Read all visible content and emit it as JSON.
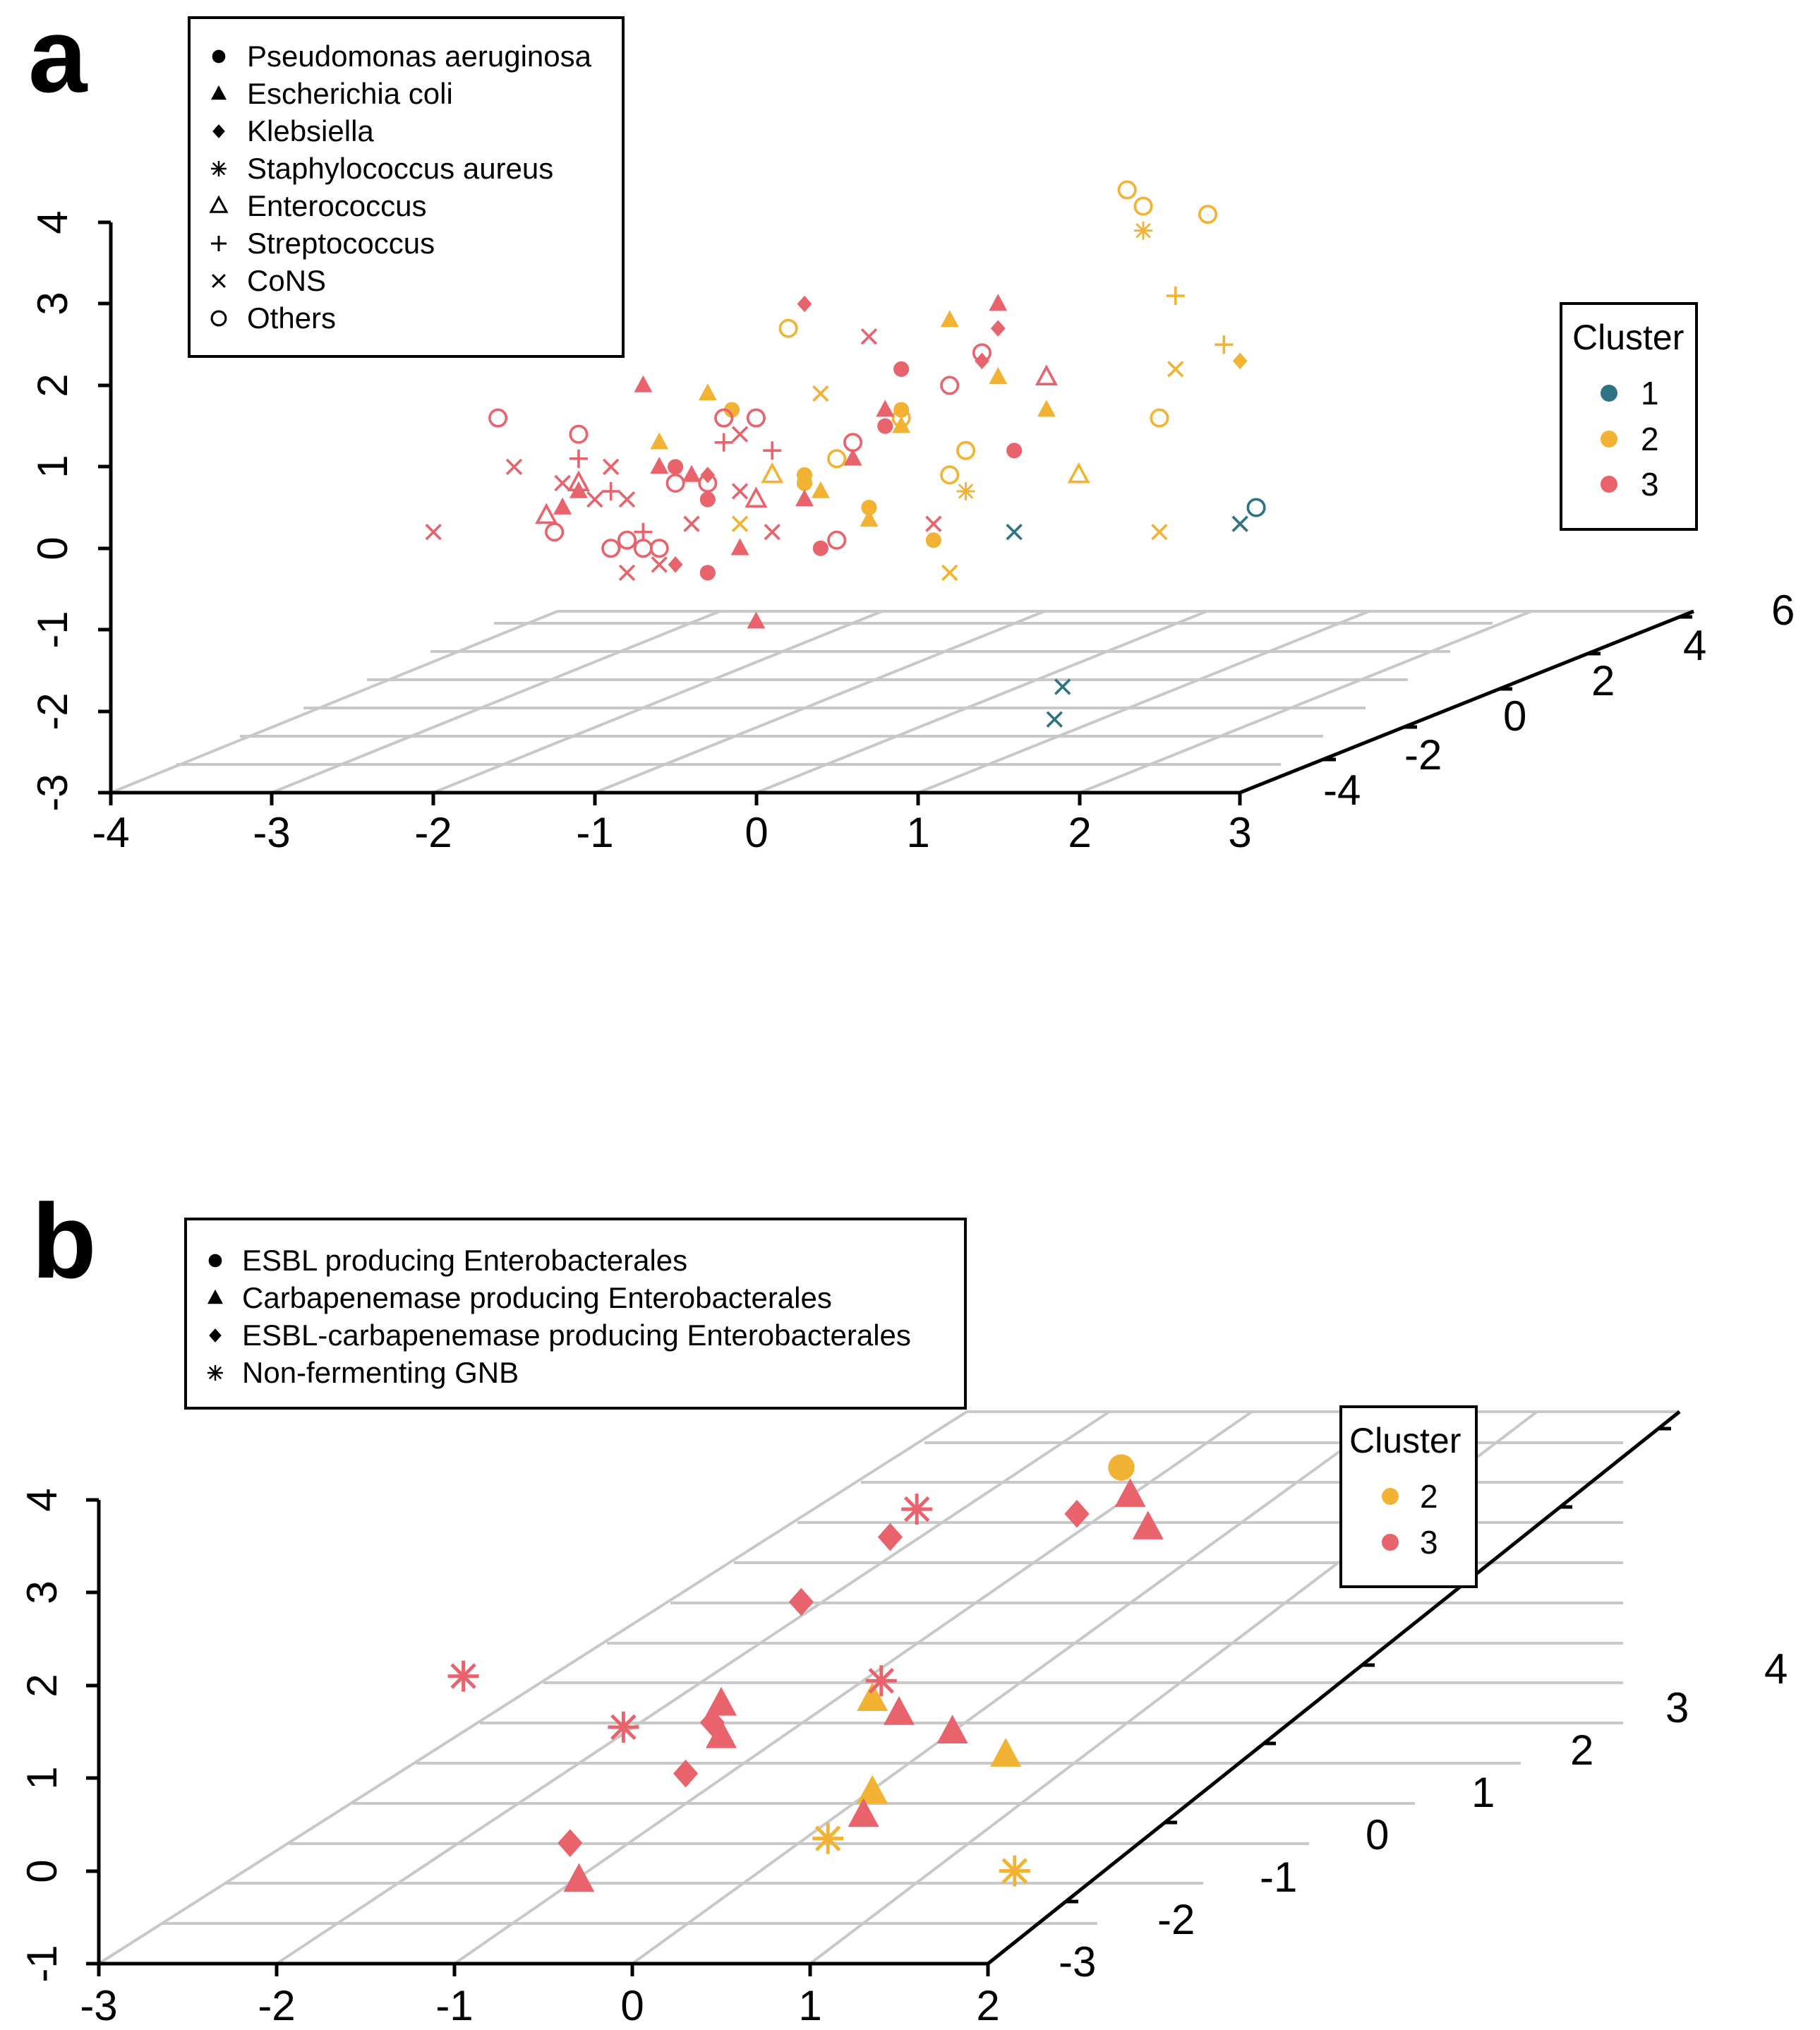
{
  "figure": {
    "panels": [
      {
        "id": "a",
        "panel_label": "a",
        "legend_title": "",
        "cluster_legend": {
          "title": "Cluster",
          "entries": [
            {
              "label": "1",
              "color": "#2e7384"
            },
            {
              "label": "2",
              "color": "#f2b233"
            },
            {
              "label": "3",
              "color": "#e8636b"
            }
          ]
        },
        "species_legend": [
          {
            "label": "Pseudomonas aeruginosa",
            "shape": "circle-filled"
          },
          {
            "label": "Escherichia coli",
            "shape": "triangle-filled"
          },
          {
            "label": "Klebsiella",
            "shape": "diamond-filled"
          },
          {
            "label": "Staphylococcus aureus",
            "shape": "asterisk"
          },
          {
            "label": "Enterococcus",
            "shape": "triangle-open"
          },
          {
            "label": "Streptococcus",
            "shape": "plus"
          },
          {
            "label": "CoNS",
            "shape": "cross"
          },
          {
            "label": "Others",
            "shape": "circle-open"
          }
        ],
        "axes": {
          "x_ticks": [
            "-4",
            "-3",
            "-2",
            "-1",
            "0",
            "1",
            "2",
            "3"
          ],
          "z_ticks": [
            "-3",
            "-2",
            "-1",
            "0",
            "1",
            "2",
            "3",
            "4"
          ],
          "y_ticks": [
            "-4",
            "-2",
            "0",
            "2",
            "4",
            "6"
          ]
        }
      },
      {
        "id": "b",
        "panel_label": "b",
        "cluster_legend": {
          "title": "Cluster",
          "entries": [
            {
              "label": "2",
              "color": "#f2b233"
            },
            {
              "label": "3",
              "color": "#e8636b"
            }
          ]
        },
        "species_legend": [
          {
            "label": "ESBL producing Enterobacterales",
            "shape": "circle-filled"
          },
          {
            "label": "Carbapenemase producing Enterobacterales",
            "shape": "triangle-filled"
          },
          {
            "label": "ESBL-carbapenemase producing Enterobacterales",
            "shape": "diamond-filled"
          },
          {
            "label": "Non-fermenting GNB",
            "shape": "asterisk"
          }
        ],
        "axes": {
          "x_ticks": [
            "-3",
            "-2",
            "-1",
            "0",
            "1",
            "2"
          ],
          "z_ticks": [
            "-1",
            "0",
            "1",
            "2",
            "3",
            "4"
          ],
          "y_ticks": [
            "-3",
            "-2",
            "-1",
            "0",
            "1",
            "2",
            "3",
            "4"
          ]
        }
      }
    ]
  },
  "chart_data": [
    {
      "type": "scatter",
      "panel": "a",
      "title": "",
      "xlabel": "",
      "ylabel": "",
      "zlabel": "",
      "xlim": [
        -4,
        3
      ],
      "zlim": [
        -3,
        4
      ],
      "ylim": [
        -4,
        6
      ],
      "series": [
        {
          "name": "Cluster 1",
          "color": "#2e7384",
          "points": [
            {
              "x": 1.6,
              "z": 0.2,
              "shape": "cross"
            },
            {
              "x": 3.0,
              "z": 0.3,
              "shape": "cross"
            },
            {
              "x": 3.1,
              "z": 0.5,
              "shape": "circle-open"
            },
            {
              "x": 1.9,
              "z": -1.7,
              "shape": "cross"
            },
            {
              "x": 1.85,
              "z": -2.1,
              "shape": "cross"
            }
          ]
        },
        {
          "name": "Cluster 2",
          "color": "#f2b233",
          "points": [
            {
              "x": 2.3,
              "z": 4.4,
              "shape": "circle-open"
            },
            {
              "x": 2.4,
              "z": 4.2,
              "shape": "circle-open"
            },
            {
              "x": 2.8,
              "z": 4.1,
              "shape": "circle-open"
            },
            {
              "x": 2.4,
              "z": 3.9,
              "shape": "asterisk"
            },
            {
              "x": 2.6,
              "z": 3.1,
              "shape": "plus"
            },
            {
              "x": 2.9,
              "z": 2.5,
              "shape": "plus"
            },
            {
              "x": 3.0,
              "z": 2.3,
              "shape": "diamond-filled"
            },
            {
              "x": 2.6,
              "z": 2.2,
              "shape": "cross"
            },
            {
              "x": 2.5,
              "z": 1.6,
              "shape": "circle-open"
            },
            {
              "x": 2.5,
              "z": 0.2,
              "shape": "cross"
            },
            {
              "x": 1.2,
              "z": 2.8,
              "shape": "triangle-filled"
            },
            {
              "x": 1.5,
              "z": 2.1,
              "shape": "triangle-filled"
            },
            {
              "x": 1.8,
              "z": 1.7,
              "shape": "triangle-filled"
            },
            {
              "x": 2.0,
              "z": 0.9,
              "shape": "triangle-open"
            },
            {
              "x": 1.3,
              "z": 1.2,
              "shape": "circle-open"
            },
            {
              "x": 1.2,
              "z": 0.9,
              "shape": "circle-open"
            },
            {
              "x": 1.3,
              "z": 0.7,
              "shape": "asterisk"
            },
            {
              "x": 1.1,
              "z": 0.1,
              "shape": "circle-filled"
            },
            {
              "x": 1.2,
              "z": -0.3,
              "shape": "cross"
            },
            {
              "x": 0.9,
              "z": 1.7,
              "shape": "circle-filled"
            },
            {
              "x": 0.9,
              "z": 1.6,
              "shape": "circle-open"
            },
            {
              "x": 0.9,
              "z": 1.5,
              "shape": "triangle-filled"
            },
            {
              "x": 0.4,
              "z": 1.9,
              "shape": "cross"
            },
            {
              "x": 0.2,
              "z": 2.7,
              "shape": "circle-open"
            },
            {
              "x": -0.3,
              "z": 1.9,
              "shape": "triangle-filled"
            },
            {
              "x": -0.15,
              "z": 1.7,
              "shape": "circle-filled"
            },
            {
              "x": -0.6,
              "z": 1.3,
              "shape": "triangle-filled"
            },
            {
              "x": 0.5,
              "z": 1.1,
              "shape": "circle-open"
            },
            {
              "x": 0.3,
              "z": 0.9,
              "shape": "circle-filled"
            },
            {
              "x": 0.1,
              "z": 0.9,
              "shape": "triangle-open"
            },
            {
              "x": 0.4,
              "z": 0.7,
              "shape": "triangle-filled"
            },
            {
              "x": 0.7,
              "z": 0.5,
              "shape": "circle-filled"
            },
            {
              "x": 0.7,
              "z": 0.35,
              "shape": "triangle-filled"
            },
            {
              "x": -0.1,
              "z": 0.3,
              "shape": "cross"
            },
            {
              "x": 0.3,
              "z": 0.8,
              "shape": "circle-filled"
            }
          ]
        },
        {
          "name": "Cluster 3",
          "color": "#e8636b",
          "points": [
            {
              "x": 1.5,
              "z": 3.0,
              "shape": "triangle-filled"
            },
            {
              "x": 0.3,
              "z": 3.0,
              "shape": "diamond-filled"
            },
            {
              "x": 1.5,
              "z": 2.7,
              "shape": "diamond-filled"
            },
            {
              "x": 1.4,
              "z": 2.4,
              "shape": "circle-open"
            },
            {
              "x": 1.4,
              "z": 2.3,
              "shape": "diamond-filled"
            },
            {
              "x": 0.7,
              "z": 2.6,
              "shape": "cross"
            },
            {
              "x": 0.9,
              "z": 2.2,
              "shape": "circle-filled"
            },
            {
              "x": 1.2,
              "z": 2.0,
              "shape": "circle-open"
            },
            {
              "x": 1.8,
              "z": 2.1,
              "shape": "triangle-open"
            },
            {
              "x": 1.6,
              "z": 1.2,
              "shape": "circle-filled"
            },
            {
              "x": 1.1,
              "z": 0.3,
              "shape": "cross"
            },
            {
              "x": 0.8,
              "z": 1.7,
              "shape": "triangle-filled"
            },
            {
              "x": 0.8,
              "z": 1.5,
              "shape": "circle-filled"
            },
            {
              "x": 0.6,
              "z": 1.3,
              "shape": "circle-open"
            },
            {
              "x": 0.6,
              "z": 1.1,
              "shape": "triangle-filled"
            },
            {
              "x": -0.7,
              "z": 2.0,
              "shape": "triangle-filled"
            },
            {
              "x": -0.2,
              "z": 1.6,
              "shape": "circle-open"
            },
            {
              "x": 0.0,
              "z": 1.6,
              "shape": "circle-open"
            },
            {
              "x": -0.1,
              "z": 1.4,
              "shape": "cross"
            },
            {
              "x": 0.1,
              "z": 1.2,
              "shape": "plus"
            },
            {
              "x": -0.2,
              "z": 1.3,
              "shape": "plus"
            },
            {
              "x": -1.6,
              "z": 1.6,
              "shape": "circle-open"
            },
            {
              "x": -1.1,
              "z": 1.4,
              "shape": "circle-open"
            },
            {
              "x": -1.1,
              "z": 1.1,
              "shape": "plus"
            },
            {
              "x": -0.9,
              "z": 1.0,
              "shape": "cross"
            },
            {
              "x": -1.2,
              "z": 0.8,
              "shape": "cross"
            },
            {
              "x": -1.5,
              "z": 1.0,
              "shape": "cross"
            },
            {
              "x": -0.6,
              "z": 1.0,
              "shape": "triangle-filled"
            },
            {
              "x": -0.5,
              "z": 1.0,
              "shape": "circle-filled"
            },
            {
              "x": -0.4,
              "z": 0.9,
              "shape": "triangle-filled"
            },
            {
              "x": -0.3,
              "z": 0.9,
              "shape": "diamond-filled"
            },
            {
              "x": -0.3,
              "z": 0.8,
              "shape": "circle-open"
            },
            {
              "x": -0.3,
              "z": 0.6,
              "shape": "circle-filled"
            },
            {
              "x": -0.1,
              "z": 0.7,
              "shape": "cross"
            },
            {
              "x": 0.0,
              "z": 0.6,
              "shape": "triangle-open"
            },
            {
              "x": 0.3,
              "z": 0.6,
              "shape": "triangle-filled"
            },
            {
              "x": -0.9,
              "z": 0.7,
              "shape": "plus"
            },
            {
              "x": -0.8,
              "z": 0.6,
              "shape": "cross"
            },
            {
              "x": -1.0,
              "z": 0.6,
              "shape": "cross"
            },
            {
              "x": -1.1,
              "z": 0.7,
              "shape": "triangle-filled"
            },
            {
              "x": -1.2,
              "z": 0.5,
              "shape": "triangle-filled"
            },
            {
              "x": -1.3,
              "z": 0.4,
              "shape": "triangle-open"
            },
            {
              "x": -1.25,
              "z": 0.2,
              "shape": "circle-open"
            },
            {
              "x": -1.1,
              "z": 0.8,
              "shape": "triangle-open"
            },
            {
              "x": -0.8,
              "z": 0.1,
              "shape": "circle-open"
            },
            {
              "x": -0.7,
              "z": 0.0,
              "shape": "circle-open"
            },
            {
              "x": -0.7,
              "z": 0.2,
              "shape": "plus"
            },
            {
              "x": -0.6,
              "z": 0.0,
              "shape": "circle-open"
            },
            {
              "x": -0.6,
              "z": -0.2,
              "shape": "cross"
            },
            {
              "x": -0.5,
              "z": -0.2,
              "shape": "diamond-filled"
            },
            {
              "x": -0.8,
              "z": -0.3,
              "shape": "cross"
            },
            {
              "x": -0.4,
              "z": 0.3,
              "shape": "cross"
            },
            {
              "x": -0.3,
              "z": -0.3,
              "shape": "circle-filled"
            },
            {
              "x": -0.1,
              "z": 0.0,
              "shape": "triangle-filled"
            },
            {
              "x": 0.1,
              "z": 0.2,
              "shape": "cross"
            },
            {
              "x": 0.4,
              "z": 0.0,
              "shape": "circle-filled"
            },
            {
              "x": 0.5,
              "z": 0.1,
              "shape": "circle-open"
            },
            {
              "x": -2.0,
              "z": 0.2,
              "shape": "cross"
            },
            {
              "x": 0.0,
              "z": -0.9,
              "shape": "triangle-filled"
            },
            {
              "x": -0.9,
              "z": 0.0,
              "shape": "circle-open"
            },
            {
              "x": -0.5,
              "z": 0.8,
              "shape": "circle-open"
            }
          ]
        }
      ]
    },
    {
      "type": "scatter",
      "panel": "b",
      "title": "",
      "xlabel": "",
      "ylabel": "",
      "zlabel": "",
      "xlim": [
        -3,
        2
      ],
      "zlim": [
        -1,
        4
      ],
      "ylim": [
        -3,
        4
      ],
      "series": [
        {
          "name": "Cluster 2",
          "color": "#f2b233",
          "points": [
            {
              "x": 2.75,
              "z": 4.35,
              "shape": "circle-filled"
            },
            {
              "x": 1.35,
              "z": 1.85,
              "shape": "triangle-filled"
            },
            {
              "x": 2.1,
              "z": 1.25,
              "shape": "triangle-filled"
            },
            {
              "x": 1.35,
              "z": 0.85,
              "shape": "triangle-filled"
            },
            {
              "x": 1.1,
              "z": 0.35,
              "shape": "asterisk"
            },
            {
              "x": 2.15,
              "z": 0.0,
              "shape": "asterisk"
            }
          ]
        },
        {
          "name": "Cluster 3",
          "color": "#e8636b",
          "points": [
            {
              "x": 2.8,
              "z": 4.05,
              "shape": "triangle-filled"
            },
            {
              "x": 2.5,
              "z": 3.85,
              "shape": "diamond-filled"
            },
            {
              "x": 2.9,
              "z": 3.7,
              "shape": "triangle-filled"
            },
            {
              "x": 1.6,
              "z": 3.9,
              "shape": "asterisk"
            },
            {
              "x": 1.45,
              "z": 3.6,
              "shape": "diamond-filled"
            },
            {
              "x": 0.95,
              "z": 2.9,
              "shape": "diamond-filled"
            },
            {
              "x": -0.95,
              "z": 2.1,
              "shape": "asterisk"
            },
            {
              "x": 1.4,
              "z": 2.05,
              "shape": "asterisk"
            },
            {
              "x": -0.05,
              "z": 1.55,
              "shape": "asterisk"
            },
            {
              "x": 0.5,
              "z": 1.8,
              "shape": "triangle-filled"
            },
            {
              "x": 0.45,
              "z": 1.6,
              "shape": "diamond-filled"
            },
            {
              "x": 0.5,
              "z": 1.45,
              "shape": "triangle-filled"
            },
            {
              "x": 1.5,
              "z": 1.7,
              "shape": "triangle-filled"
            },
            {
              "x": 1.8,
              "z": 1.5,
              "shape": "triangle-filled"
            },
            {
              "x": 0.3,
              "z": 1.05,
              "shape": "diamond-filled"
            },
            {
              "x": 1.3,
              "z": 0.6,
              "shape": "triangle-filled"
            },
            {
              "x": -0.35,
              "z": 0.3,
              "shape": "diamond-filled"
            },
            {
              "x": -0.3,
              "z": -0.1,
              "shape": "triangle-filled"
            }
          ]
        }
      ]
    }
  ]
}
